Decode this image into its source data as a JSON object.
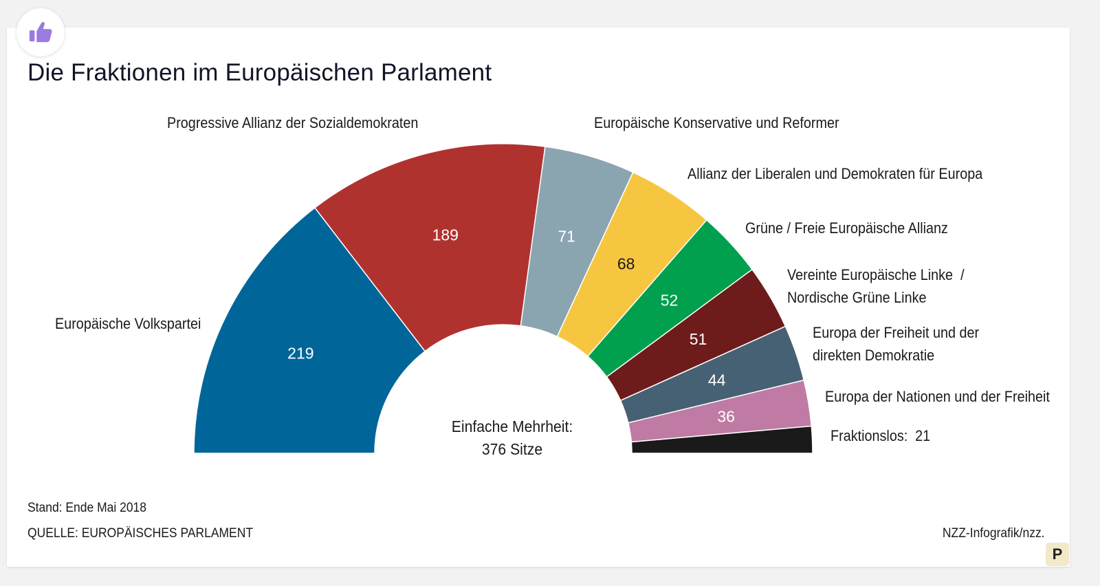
{
  "title": "Die Fraktionen im Europäischen Parlament",
  "chart_data": {
    "type": "pie",
    "variant": "semicircle-parliament",
    "series": [
      {
        "name": "Europäische Volkspartei",
        "value": 219,
        "color": "#00669a"
      },
      {
        "name": "Progressive Allianz der Sozialdemokraten",
        "value": 189,
        "color": "#b0322f"
      },
      {
        "name": "Europäische Konservative und Reformer",
        "value": 71,
        "color": "#8aa5b0"
      },
      {
        "name": "Allianz der Liberalen und Demokraten für Europa",
        "value": 68,
        "color": "#f7c640"
      },
      {
        "name": "Grüne / Freie Europäische Allianz",
        "value": 52,
        "color": "#00a04f"
      },
      {
        "name": "Vereinte Europäische Linke  /\nNordische Grüne Linke",
        "value": 51,
        "color": "#6d1c1b"
      },
      {
        "name": "Europa der Freiheit und der\ndirekten Demokratie",
        "value": 44,
        "color": "#466174"
      },
      {
        "name": "Europa der Nationen und der Freiheit",
        "value": 36,
        "color": "#bf7ba3"
      },
      {
        "name": "Fraktionslos:",
        "value": 21,
        "color": "#1a1a1a"
      }
    ],
    "center_label": {
      "line1": "Einfache Mehrheit:",
      "line2": "376 Sitze"
    }
  },
  "footer": {
    "stand": "Stand: Ende Mai 2018",
    "source": "QUELLE: EUROPÄISCHES PARLAMENT",
    "credit": "NZZ-Infografik/nzz."
  },
  "badge_icon": "thumbs-up-icon",
  "corner_badge": "P"
}
